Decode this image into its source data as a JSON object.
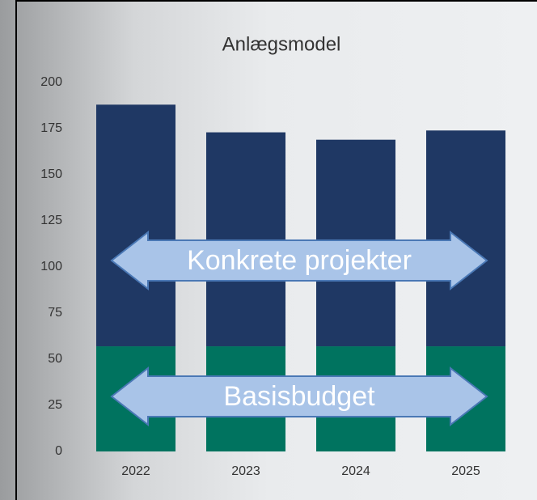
{
  "chart_data": {
    "type": "stacked-bar",
    "title": "Anlægsmodel",
    "categories": [
      "2022",
      "2023",
      "2024",
      "2025"
    ],
    "series": [
      {
        "color": "#00735f",
        "values": [
          57,
          57,
          57,
          57
        ]
      },
      {
        "color": "#1f3864",
        "values": [
          131,
          116,
          112,
          117
        ]
      }
    ],
    "ylim": [
      0,
      200
    ],
    "yticks": [
      0,
      25,
      50,
      75,
      100,
      125,
      150,
      175,
      200
    ],
    "grid": false,
    "annotations": [
      "Konkrete projekter",
      "Basisbudget"
    ]
  }
}
